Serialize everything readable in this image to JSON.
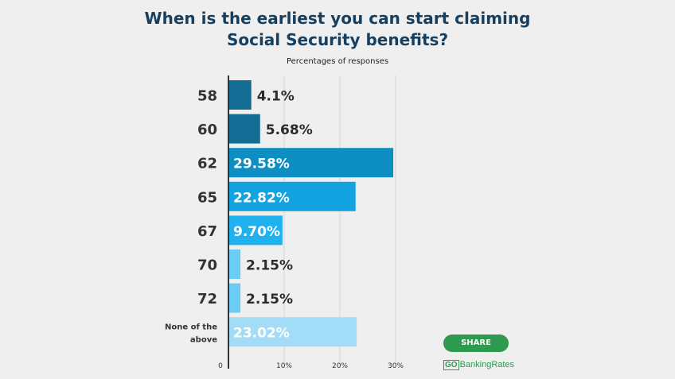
{
  "chart_data": {
    "type": "bar",
    "orientation": "horizontal",
    "title_lines": [
      "When is the earliest you can start claiming",
      "Social Security benefits?"
    ],
    "subtitle": "Percentages of responses",
    "categories": [
      "58",
      "60",
      "62",
      "65",
      "67",
      "70",
      "72",
      "None of the above"
    ],
    "category_lines": [
      [
        "58"
      ],
      [
        "60"
      ],
      [
        "62"
      ],
      [
        "65"
      ],
      [
        "67"
      ],
      [
        "70"
      ],
      [
        "72"
      ],
      [
        "None of the",
        "above"
      ]
    ],
    "values": [
      4.1,
      5.68,
      29.58,
      22.82,
      9.7,
      2.15,
      2.15,
      23.02
    ],
    "value_labels": [
      "4.1%",
      "5.68%",
      "29.58%",
      "22.82%",
      "9.70%",
      "2.15%",
      "2.15%",
      "23.02%"
    ],
    "bar_colors": [
      "#136c94",
      "#136c94",
      "#0e8fc4",
      "#13a3e0",
      "#1fb2ef",
      "#6cccf6",
      "#6cccf6",
      "#a2dcf7"
    ],
    "x_ticks": [
      0,
      10,
      20,
      30
    ],
    "x_tick_labels": [
      "0",
      "10%",
      "20%",
      "30%"
    ],
    "xlim": [
      0,
      32
    ],
    "grid": true
  },
  "share_label": "SHARE",
  "brand": {
    "go": "GO",
    "rest": "BankingRates"
  },
  "colors": {
    "title": "#173f5f",
    "share": "#2e9a4f",
    "background": "#efefef"
  }
}
